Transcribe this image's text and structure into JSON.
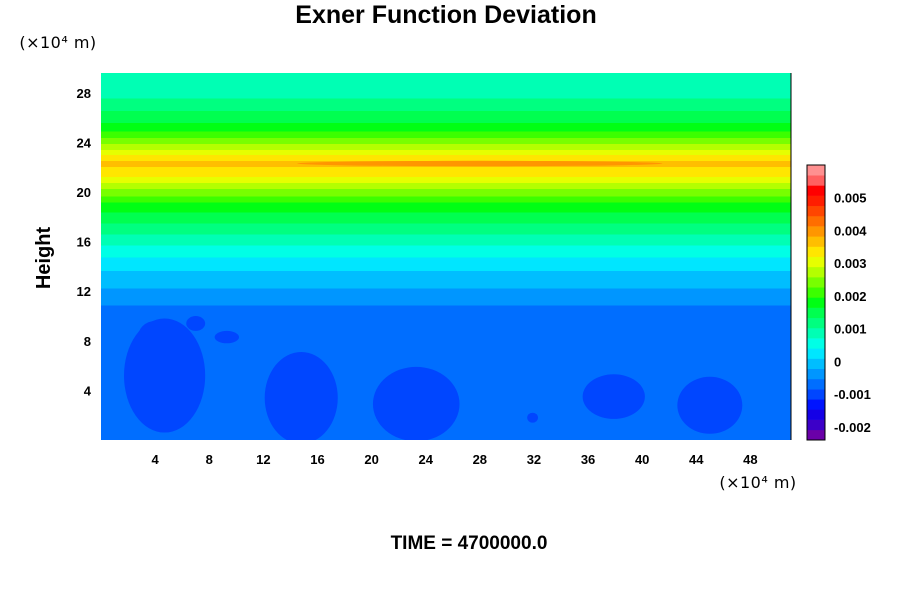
{
  "chart_data": {
    "type": "heatmap",
    "title": "Exner Function Deviation",
    "ylabel": "Height",
    "xlabel": "",
    "y_unit": "(×10⁴ m)",
    "x_unit": "(×10⁴ m)",
    "x_ticks": [
      4,
      8,
      12,
      16,
      20,
      24,
      28,
      32,
      36,
      40,
      44,
      48
    ],
    "y_ticks": [
      4,
      8,
      12,
      16,
      20,
      24,
      28
    ],
    "xlim": [
      0,
      51
    ],
    "ylim": [
      0,
      29.6
    ],
    "colorbar": {
      "range": [
        -0.0024,
        0.006
      ],
      "tick_values": [
        -0.002,
        -0.001,
        0,
        0.001,
        0.002,
        0.003,
        0.004,
        0.005
      ],
      "tick_labels": [
        "-0.002",
        "-0.001",
        "0",
        "0.001",
        "0.002",
        "0.003",
        "0.004",
        "0.005"
      ],
      "colors": [
        "#6a00a8",
        "#3c00c8",
        "#1400e6",
        "#0014ff",
        "#0046ff",
        "#006eff",
        "#0096ff",
        "#00beff",
        "#00e6ff",
        "#00ffe6",
        "#00ffb4",
        "#00ff80",
        "#00ff50",
        "#00ff14",
        "#3cff00",
        "#78ff00",
        "#b4ff00",
        "#e6ff00",
        "#ffe600",
        "#ffbe00",
        "#ff9600",
        "#ff6e00",
        "#ff4600",
        "#ff1e00",
        "#ff0000",
        "#ff6060",
        "#ff9090"
      ]
    },
    "vertical_profile": [
      {
        "y": 0,
        "value": -0.0006
      },
      {
        "y": 10.5,
        "value": -0.0006
      },
      {
        "y": 12.3,
        "value": -0.0002
      },
      {
        "y": 14.0,
        "value": 0.0002
      },
      {
        "y": 16.5,
        "value": 0.001
      },
      {
        "y": 19.0,
        "value": 0.0019
      },
      {
        "y": 21.5,
        "value": 0.0034
      },
      {
        "y": 22.3,
        "value": 0.0036
      },
      {
        "y": 23.5,
        "value": 0.0028
      },
      {
        "y": 25.0,
        "value": 0.0018
      },
      {
        "y": 27.5,
        "value": 0.001
      },
      {
        "y": 29.6,
        "value": 0.0008
      }
    ],
    "anomalies": [
      {
        "x": 4.7,
        "y": 5.2,
        "rx": 3.0,
        "ry": 4.6,
        "value": -0.0009
      },
      {
        "x": 4.0,
        "y": 8.2,
        "rx": 1.3,
        "ry": 1.4,
        "value": -0.0009
      },
      {
        "x": 7.0,
        "y": 9.4,
        "rx": 0.7,
        "ry": 0.6,
        "value": -0.0009
      },
      {
        "x": 9.3,
        "y": 8.3,
        "rx": 0.9,
        "ry": 0.5,
        "value": -0.0009
      },
      {
        "x": 14.8,
        "y": 3.4,
        "rx": 2.7,
        "ry": 3.7,
        "value": -0.0009
      },
      {
        "x": 23.3,
        "y": 2.9,
        "rx": 3.2,
        "ry": 3.0,
        "value": -0.0009
      },
      {
        "x": 31.9,
        "y": 1.8,
        "rx": 0.4,
        "ry": 0.4,
        "value": -0.0009
      },
      {
        "x": 37.9,
        "y": 3.5,
        "rx": 2.3,
        "ry": 1.8,
        "value": -0.0009
      },
      {
        "x": 45.0,
        "y": 2.8,
        "rx": 2.4,
        "ry": 2.3,
        "value": -0.0009
      },
      {
        "x": 28.0,
        "y": 22.3,
        "rx": 13.5,
        "ry": 0.22,
        "value": 0.004
      }
    ]
  },
  "footer": {
    "time_label": "TIME = 4700000.0"
  }
}
